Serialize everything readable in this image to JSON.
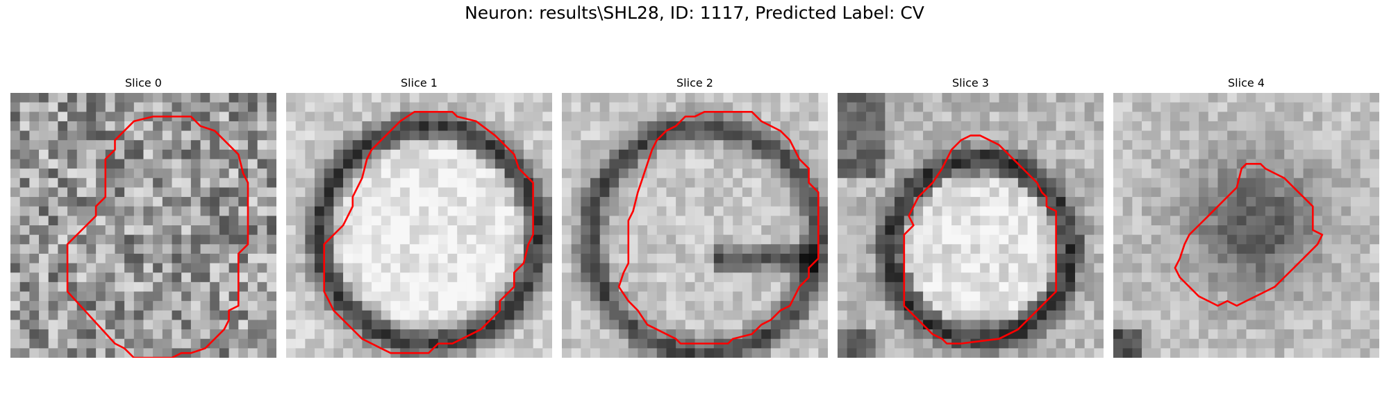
{
  "figure": {
    "title": "Neuron: results\\SHL28, ID: 1117, Predicted Label: CV",
    "contour_color": "#ff0000"
  },
  "panels": [
    {
      "title": "Slice 0",
      "image": "noisy-grayscale-slice",
      "contour": "irregular-neuron-outline"
    },
    {
      "title": "Slice 1",
      "image": "ring-cell-slice",
      "contour": "large-neuron-outline"
    },
    {
      "title": "Slice 2",
      "image": "ring-cell-slice",
      "contour": "large-neuron-outline"
    },
    {
      "title": "Slice 3",
      "image": "ring-cell-slice",
      "contour": "medium-neuron-outline"
    },
    {
      "title": "Slice 4",
      "image": "dark-core-slice",
      "contour": "small-neuron-outline"
    }
  ]
}
